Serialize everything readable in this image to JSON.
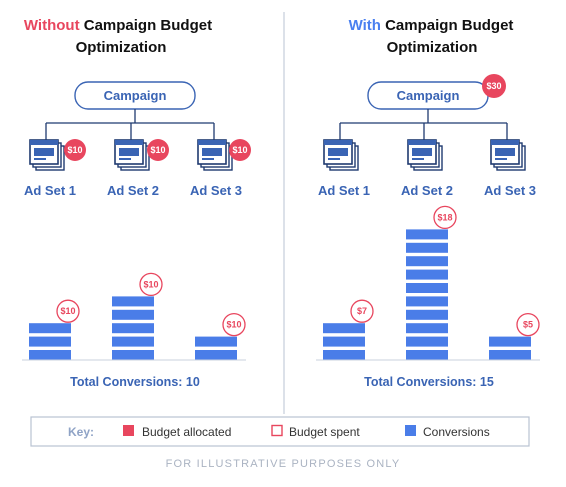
{
  "colors": {
    "accent_red": "#e8465e",
    "accent_blue": "#4a80f0",
    "text_blue": "#3a64b4",
    "bar_blue": "#4a7de8",
    "connector": "#1f3a70",
    "divider": "#b9c3d3"
  },
  "panels": [
    {
      "title_highlight": "Without",
      "title_rest": "Campaign Budget",
      "title_line2": "Optimization",
      "highlight_color": "#e8465e",
      "campaign_label": "Campaign",
      "campaign_badge": "",
      "ad_sets": [
        {
          "label": "Ad Set 1",
          "badge": "$10"
        },
        {
          "label": "Ad Set 2",
          "badge": "$10"
        },
        {
          "label": "Ad Set 3",
          "badge": "$10"
        }
      ],
      "bars": [
        {
          "conversions": 3,
          "spent": "$10"
        },
        {
          "conversions": 5,
          "spent": "$10"
        },
        {
          "conversions": 2,
          "spent": "$10"
        }
      ],
      "total": "Total Conversions: 10"
    },
    {
      "title_highlight": "With",
      "title_rest": "Campaign Budget",
      "title_line2": "Optimization",
      "highlight_color": "#4a80f0",
      "campaign_label": "Campaign",
      "campaign_badge": "$30",
      "ad_sets": [
        {
          "label": "Ad Set 1",
          "badge": ""
        },
        {
          "label": "Ad Set 2",
          "badge": ""
        },
        {
          "label": "Ad Set 3",
          "badge": ""
        }
      ],
      "bars": [
        {
          "conversions": 3,
          "spent": "$7"
        },
        {
          "conversions": 10,
          "spent": "$18"
        },
        {
          "conversions": 2,
          "spent": "$5"
        }
      ],
      "total": "Total Conversions: 15"
    }
  ],
  "key": {
    "heading": "Key:",
    "items": [
      {
        "label": "Budget allocated",
        "swatch": "filled-red"
      },
      {
        "label": "Budget spent",
        "swatch": "outline-red"
      },
      {
        "label": "Conversions",
        "swatch": "filled-blue"
      }
    ]
  },
  "footer": "FOR ILLUSTRATIVE PURPOSES ONLY"
}
